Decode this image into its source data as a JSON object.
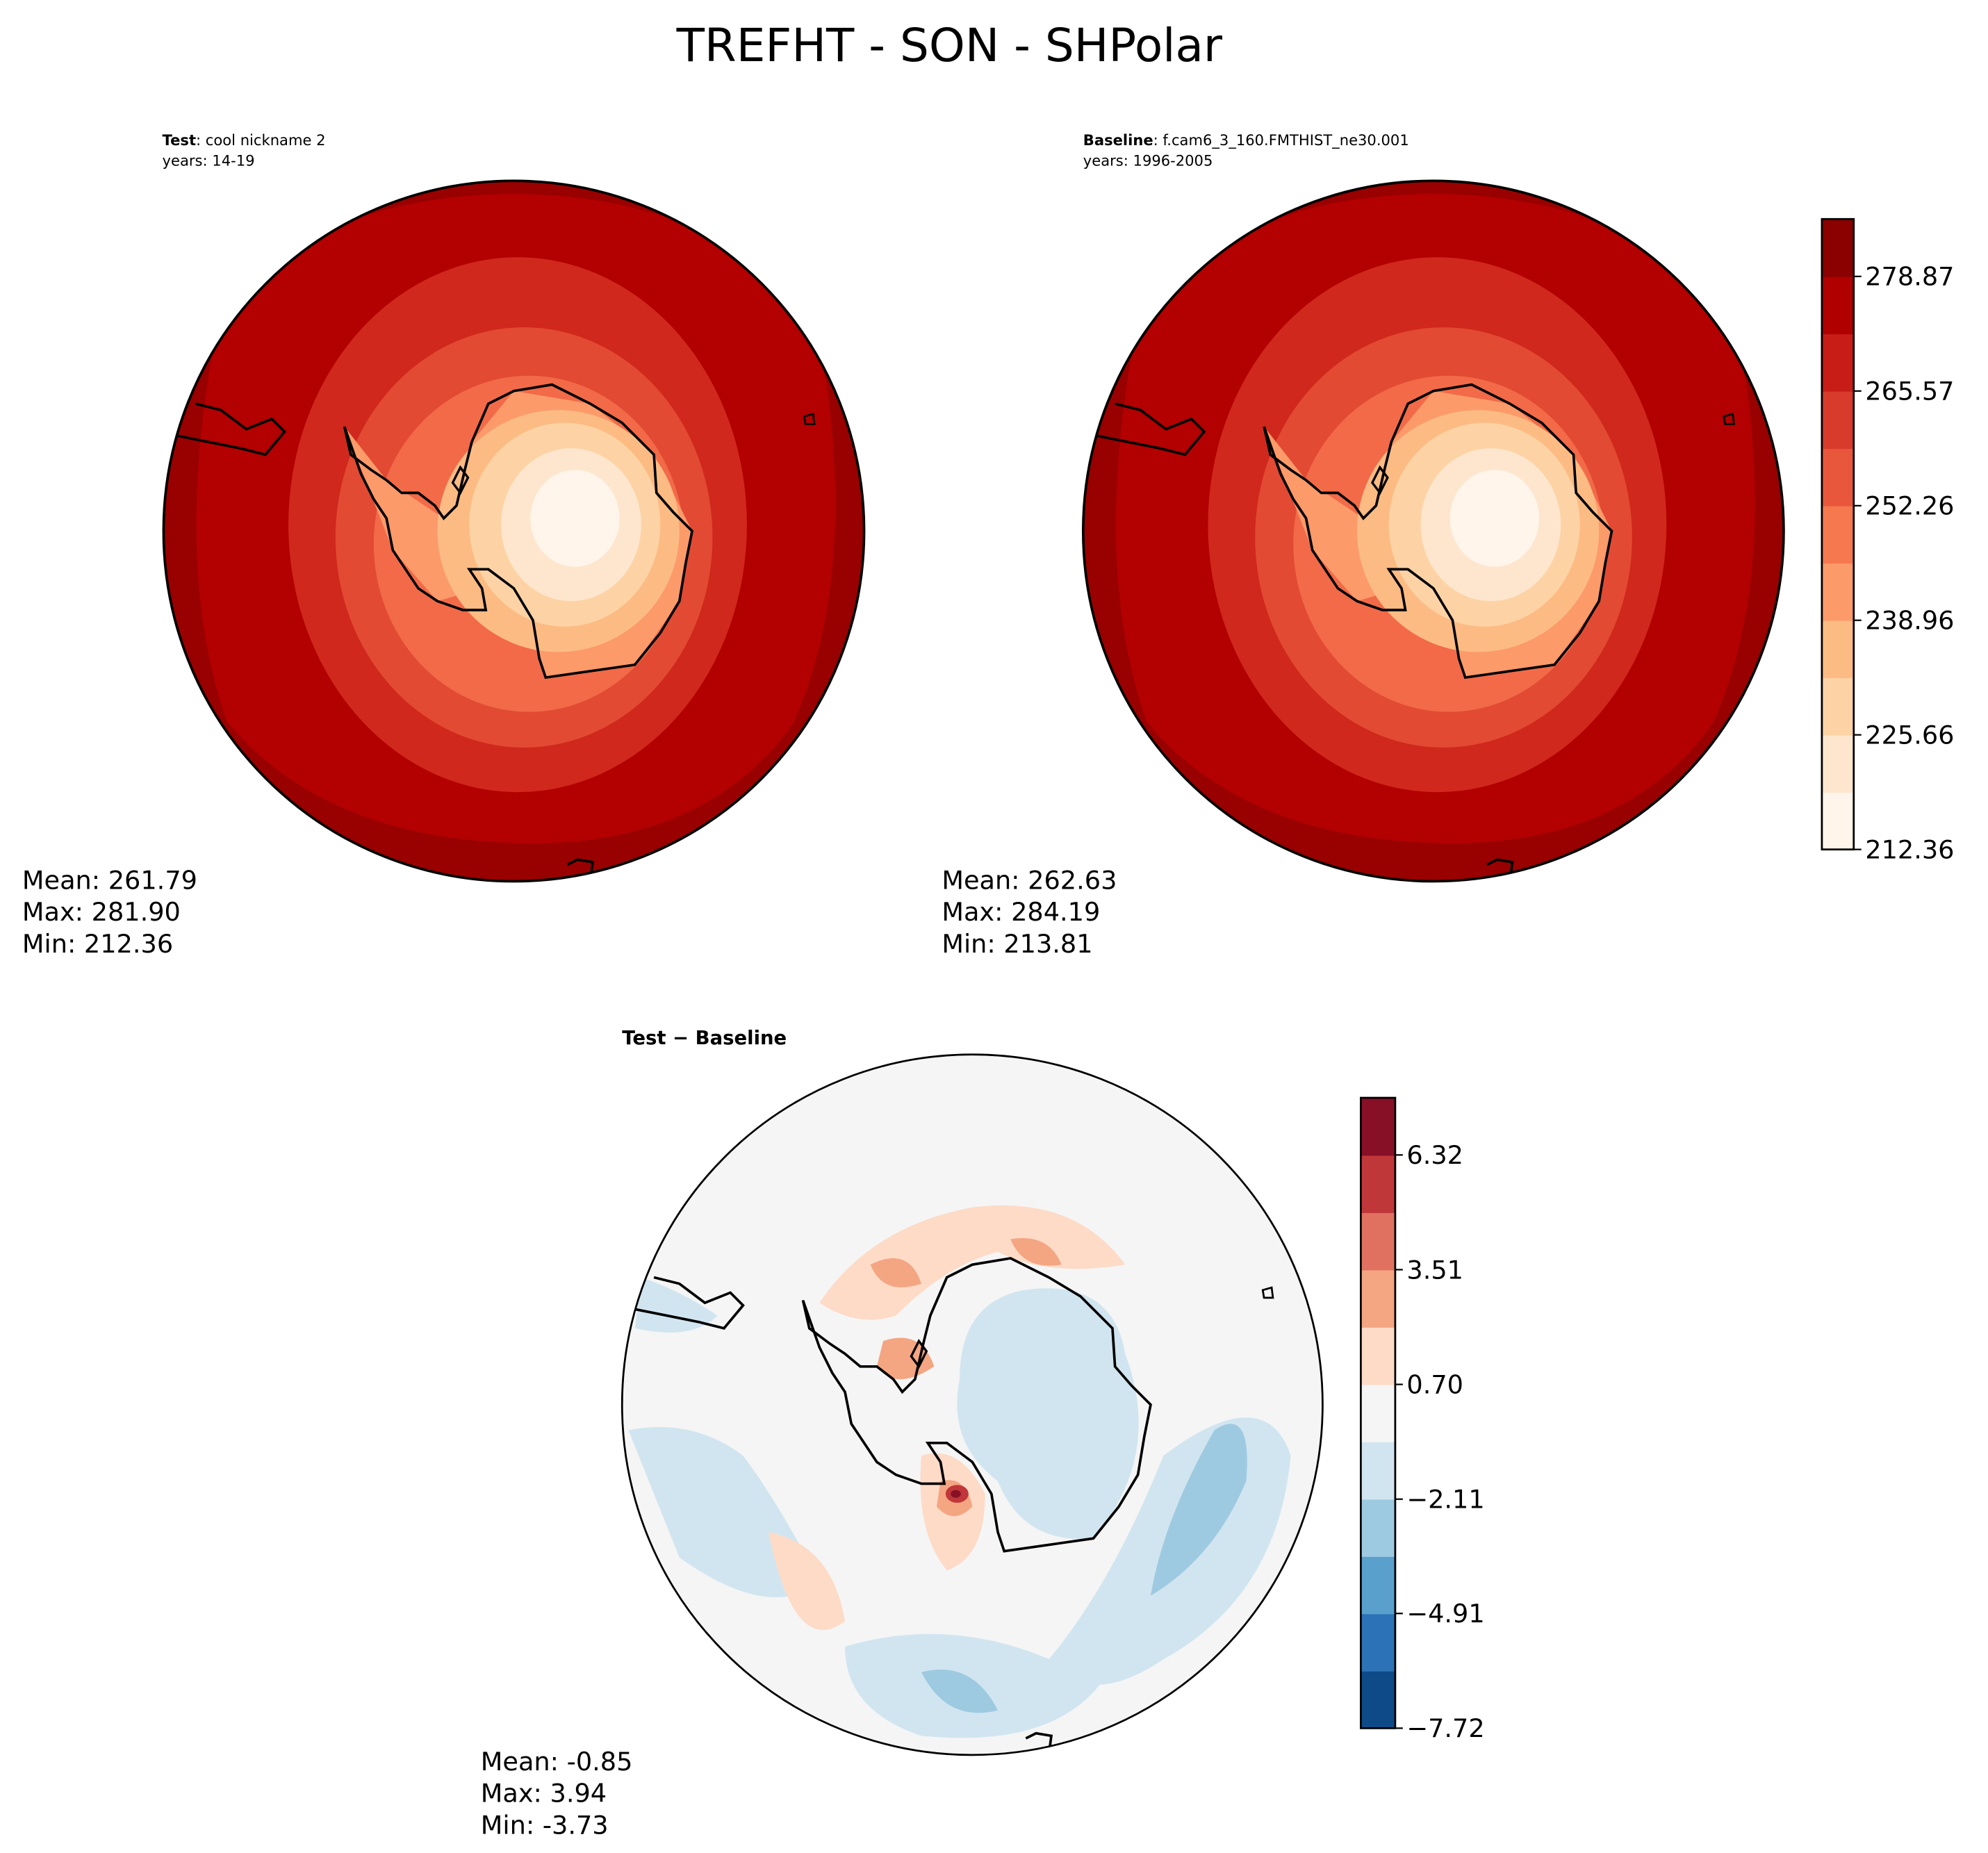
{
  "title": "TREFHT - SON - SHPolar",
  "panels": [
    {
      "label": "Test",
      "name": ": cool nickname 2",
      "years": "years: 14-19",
      "stats": [
        "Mean: 261.79",
        "Max: 281.90",
        "Min: 212.36"
      ]
    },
    {
      "label": "Baseline",
      "name": ": f.cam6_3_160.FMTHIST_ne30.001",
      "years": "years: 1996-2005",
      "stats": [
        "Mean: 262.63",
        "Max: 284.19",
        "Min: 213.81"
      ]
    },
    {
      "label": "Test − Baseline",
      "stats": [
        "Mean: -0.85",
        "Max:  3.94",
        "Min: -3.73"
      ]
    }
  ],
  "colorbars": [
    {
      "lim": [
        212.36,
        285.53
      ],
      "colors": [
        "#fff5eb",
        "#fee6ce",
        "#fdd3a5",
        "#fdbb84",
        "#fc9a6a",
        "#f6784f",
        "#e8573c",
        "#d83b2b",
        "#c81d17",
        "#b00000",
        "#8b0000"
      ],
      "ticks": [
        {
          "value": 212.36,
          "label": "212.36"
        },
        {
          "value": 225.66,
          "label": "225.66"
        },
        {
          "value": 238.96,
          "label": "238.96"
        },
        {
          "value": 252.26,
          "label": "252.26"
        },
        {
          "value": 265.57,
          "label": "265.57"
        },
        {
          "value": 278.87,
          "label": "278.87"
        }
      ]
    },
    {
      "lim": [
        -7.72,
        7.72
      ],
      "colors": [
        "#0d4a87",
        "#2b73b6",
        "#5aa0cd",
        "#9ecae1",
        "#d1e5f0",
        "#f5f5f5",
        "#fddbc7",
        "#f4a582",
        "#e07160",
        "#c0373a",
        "#870f26"
      ],
      "ticks": [
        {
          "value": -7.72,
          "label": "−7.72"
        },
        {
          "value": -4.91,
          "label": "−4.91"
        },
        {
          "value": -2.11,
          "label": "−2.11"
        },
        {
          "value": 0.7,
          "label": "0.70"
        },
        {
          "value": 3.51,
          "label": "3.51"
        },
        {
          "value": 6.32,
          "label": "6.32"
        }
      ]
    }
  ]
}
